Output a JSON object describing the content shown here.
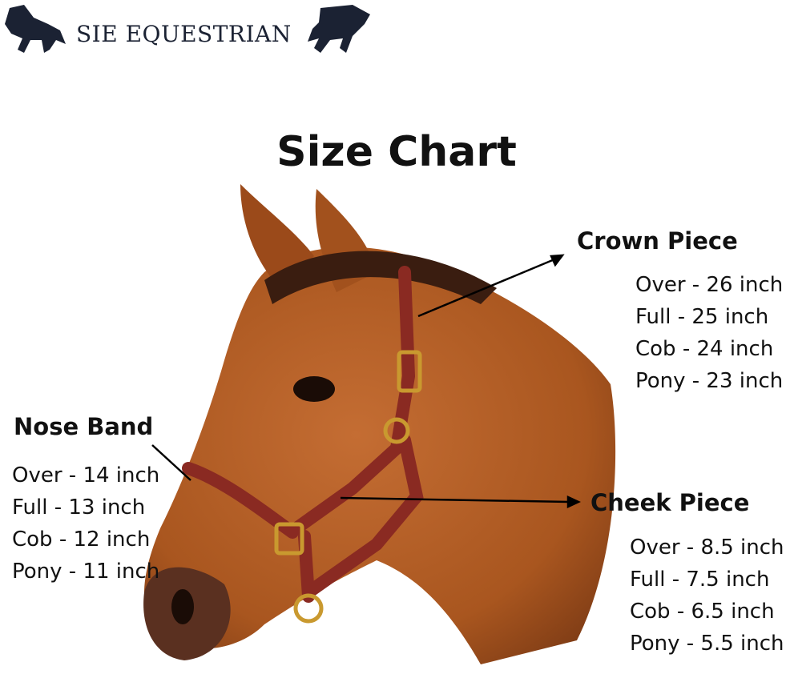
{
  "brand": {
    "name": "SIE EQUESTRIAN",
    "logo_icon": "trotting-horse-icon",
    "color": "#1b2233"
  },
  "title": "Size Chart",
  "crown_piece": {
    "heading": "Crown Piece",
    "sizes": [
      "Over - 26 inch",
      "Full - 25 inch",
      "Cob - 24 inch",
      "Pony - 23 inch"
    ]
  },
  "nose_band": {
    "heading": "Nose Band",
    "sizes": [
      "Over - 14 inch",
      "Full - 13 inch",
      "Cob - 12 inch",
      "Pony - 11 inch"
    ]
  },
  "cheek_piece": {
    "heading": "Cheek Piece",
    "sizes": [
      "Over - 8.5 inch",
      "Full - 7.5 inch",
      "Cob - 6.5 inch",
      "Pony - 5.5 inch"
    ]
  },
  "colors": {
    "horse": "#b5602a",
    "halter": "#8a2a22",
    "buckle": "#c9992f"
  }
}
